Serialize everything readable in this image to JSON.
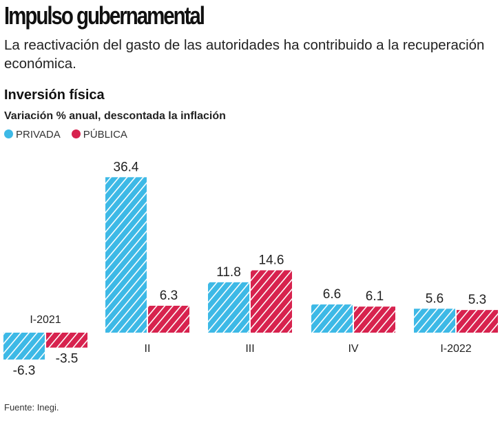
{
  "header": {
    "title": "Impulso gubernamental",
    "subtitle": "La reactivación del gasto de las autoridades ha contribuido a la recuperación económica."
  },
  "chart_data": {
    "type": "bar",
    "title": "Inversión física",
    "subtitle": "Variación % anual, descontada la inflación",
    "categories": [
      "I-2021",
      "II",
      "III",
      "IV",
      "I-2022"
    ],
    "series": [
      {
        "name": "PRIVADA",
        "color": "#3db9e6",
        "values": [
          -6.3,
          36.4,
          11.8,
          6.6,
          5.6
        ],
        "labels": [
          "-6.3",
          "36.4",
          "11.8",
          "6.6",
          "5.6"
        ]
      },
      {
        "name": "PÚBLICA",
        "color": "#d7224e",
        "values": [
          -3.5,
          6.3,
          14.6,
          6.1,
          5.3
        ],
        "labels": [
          "-3.5",
          "6.3",
          "14.6",
          "6.1",
          "5.3"
        ]
      }
    ],
    "pattern": "diagonal-hatch",
    "legend": "top-left",
    "grid": false
  },
  "footer": {
    "source": "Fuente: Inegi."
  }
}
